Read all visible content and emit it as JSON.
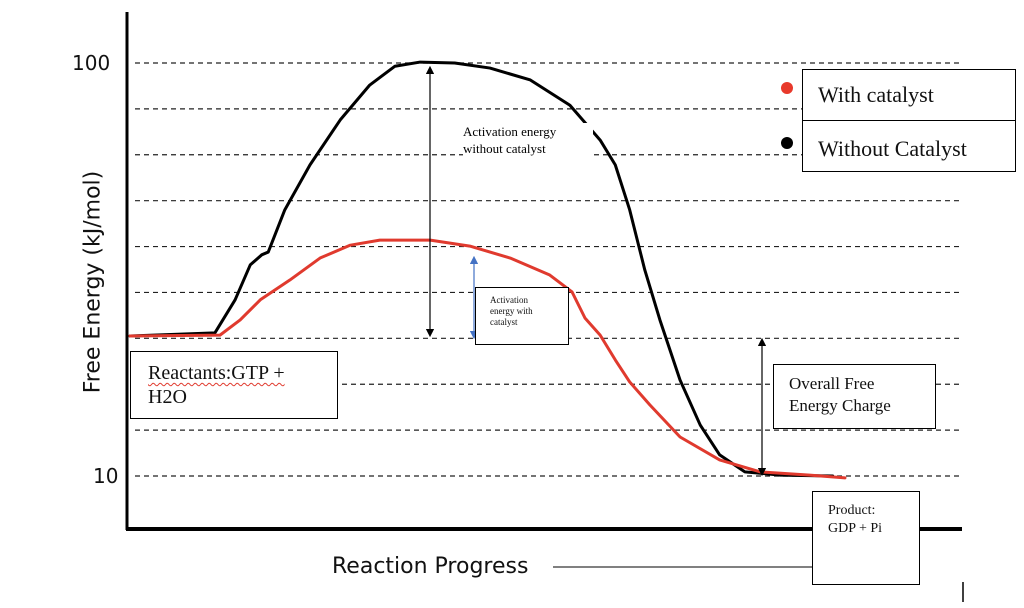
{
  "chart_data": {
    "type": "line",
    "title": "",
    "xlabel": "Reaction Progress",
    "ylabel": "Free Energy (kJ/mol)",
    "ylim": [
      0,
      110
    ],
    "xlim": [
      0,
      100
    ],
    "y_ticks": [
      {
        "value": 100,
        "label": "100"
      },
      {
        "value": 10,
        "label": "10"
      }
    ],
    "gridlines": [
      100,
      90,
      80,
      70,
      60,
      50,
      40,
      30,
      20,
      10
    ],
    "grid": "horizontal dashed",
    "legend_placement": "top-right",
    "series": [
      {
        "name": "Without Catalyst",
        "color": "#000000",
        "x": [
          0,
          11.8,
          14.6,
          16.7,
          18.3,
          19.2,
          21.5,
          25,
          29.2,
          33.3,
          36.8,
          40.3,
          45.1,
          50,
          55.6,
          61.1,
          65.3,
          67.4,
          69.4,
          71.5,
          73.6,
          76.4,
          79.2,
          81.9,
          85.4,
          90.3,
          97.6
        ],
        "y": [
          40.5,
          41.2,
          48.4,
          56.0,
          58.2,
          58.8,
          68.0,
          77.8,
          87.6,
          95.2,
          99.3,
          100.2,
          100,
          98.9,
          96.3,
          90.8,
          83.2,
          77.8,
          68.0,
          54.9,
          44.0,
          30.9,
          21.1,
          14.6,
          10.9,
          10.2,
          10
        ]
      },
      {
        "name": "With catalyst",
        "color": "#e03a2e",
        "x": [
          0,
          12.5,
          15.3,
          18.1,
          22.2,
          26.4,
          30.6,
          34.7,
          41.7,
          47.2,
          52.8,
          58.3,
          61.4,
          63.2,
          65.3,
          67.4,
          69.4,
          72.2,
          76.4,
          81.9,
          87.5,
          94.4,
          99.3
        ],
        "y": [
          40.5,
          40.7,
          44.0,
          48.4,
          52.7,
          57.5,
          60.3,
          61.4,
          61.4,
          60.1,
          57.5,
          53.8,
          50.1,
          44.4,
          40.7,
          35.3,
          30.5,
          25.5,
          18.5,
          13.5,
          10.9,
          10.2,
          9.6
        ]
      }
    ],
    "annotations": {
      "activation_without": "Activation energy without catalyst",
      "activation_with": "Activation energy with catalyst",
      "overall_line1": "Overall Free",
      "overall_line2": "Energy Charge",
      "reactants_line1": "Reactants:GTP +",
      "reactants_line2": "H2O",
      "product_line1": "Product:",
      "product_line2": "GDP + Pi"
    },
    "arrow_color_catalyst": "#4472c4"
  }
}
